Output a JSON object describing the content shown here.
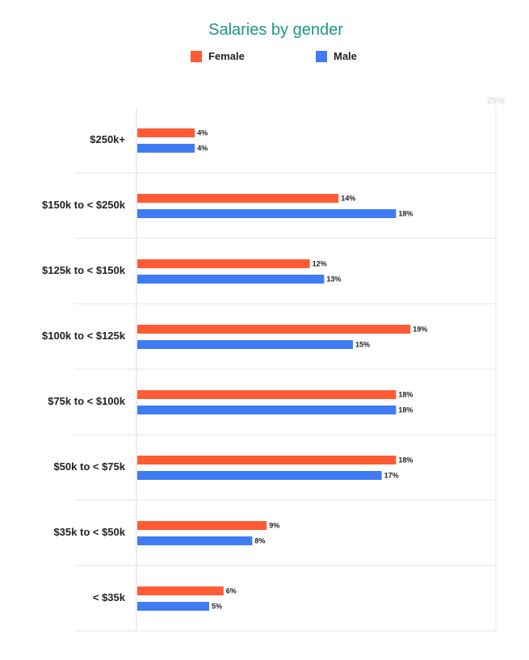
{
  "chart_data": {
    "type": "bar",
    "orientation": "horizontal",
    "title": "Salaries by gender",
    "categories": [
      "$250k+",
      "$150k to < $250k",
      "$125k to < $150k",
      "$100k to < $125k",
      "$75k to < $100k",
      "$50k to < $75k",
      "$35k to < $50k",
      "< $35k"
    ],
    "series": [
      {
        "name": "Female",
        "color": "#ff5c35",
        "values": [
          4,
          14,
          12,
          19,
          18,
          18,
          9,
          6
        ]
      },
      {
        "name": "Male",
        "color": "#3f7cf4",
        "values": [
          4,
          18,
          13,
          15,
          18,
          17,
          8,
          5
        ]
      }
    ],
    "value_suffix": "%",
    "xlim": [
      0,
      25
    ],
    "x_tick_label": "25%",
    "legend_position": "top"
  }
}
